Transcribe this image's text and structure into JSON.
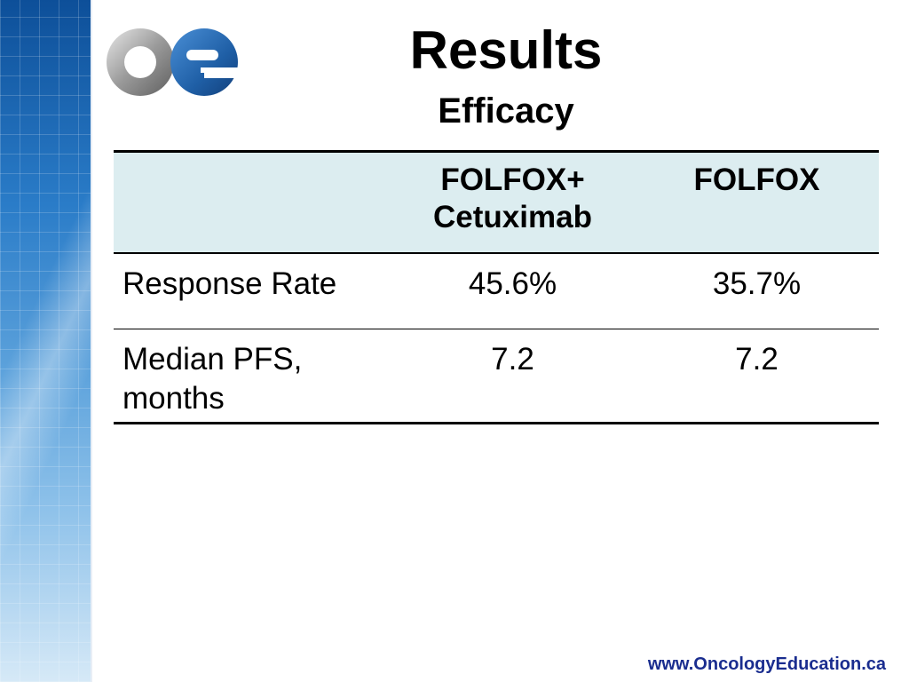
{
  "slide": {
    "title": "Results",
    "subtitle": "Efficacy",
    "logo_icon": "oe-logo-icon",
    "footer_url": "www.OncologyEducation.ca"
  },
  "table": {
    "headers": [
      "",
      "FOLFOX+ Cetuximab",
      "FOLFOX"
    ],
    "rows": [
      {
        "label": "Response Rate",
        "values": [
          "45.6%",
          "35.7%"
        ]
      },
      {
        "label": "Median PFS, months",
        "values": [
          "7.2",
          "7.2"
        ]
      }
    ]
  },
  "colors": {
    "header_bg": "#dcedf0",
    "footer_text": "#1a2d8f",
    "band_dark": "#0d4f99",
    "logo_blue": "#1f5fa6"
  }
}
